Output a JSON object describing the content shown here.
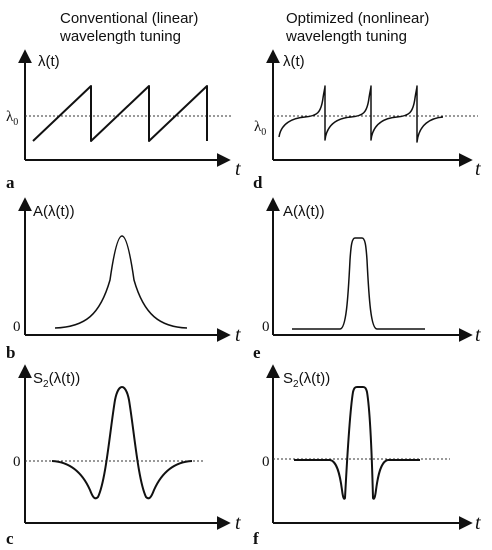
{
  "headers": {
    "left": [
      "Conventional (linear)",
      "wavelength tuning"
    ],
    "right": [
      "Optimized (nonlinear)",
      "wavelength tuning"
    ]
  },
  "panels": {
    "a": {
      "letter": "a",
      "ylabel": "λ(t)",
      "ref": "λ",
      "ref_sub": "0",
      "xlabel": "t"
    },
    "b": {
      "letter": "b",
      "ylabel": "A(λ(t))",
      "zero": "0",
      "xlabel": "t"
    },
    "c": {
      "letter": "c",
      "ylabel_pre": "S",
      "ylabel_sub": "2",
      "ylabel_post": "(λ(t))",
      "zero": "0",
      "xlabel": "t"
    },
    "d": {
      "letter": "d",
      "ylabel": "λ(t)",
      "ref": "λ",
      "ref_sub": "0",
      "xlabel": "t"
    },
    "e": {
      "letter": "e",
      "ylabel": "A(λ(t))",
      "zero": "0",
      "xlabel": "t"
    },
    "f": {
      "letter": "f",
      "ylabel_pre": "S",
      "ylabel_sub": "2",
      "ylabel_post": "(λ(t))",
      "zero": "0",
      "xlabel": "t"
    }
  },
  "diagram": {
    "a_tuning": "linear sawtooth, 3 periods",
    "d_tuning": "nonlinear (flat near λ0), 3 periods",
    "b_absorption": "Lorentzian peak",
    "e_absorption": "flat-topped peak",
    "c_signal": "second-harmonic signal, negative lobes either side of positive peak",
    "f_signal": "second-harmonic signal, narrow negative spikes at edges"
  }
}
